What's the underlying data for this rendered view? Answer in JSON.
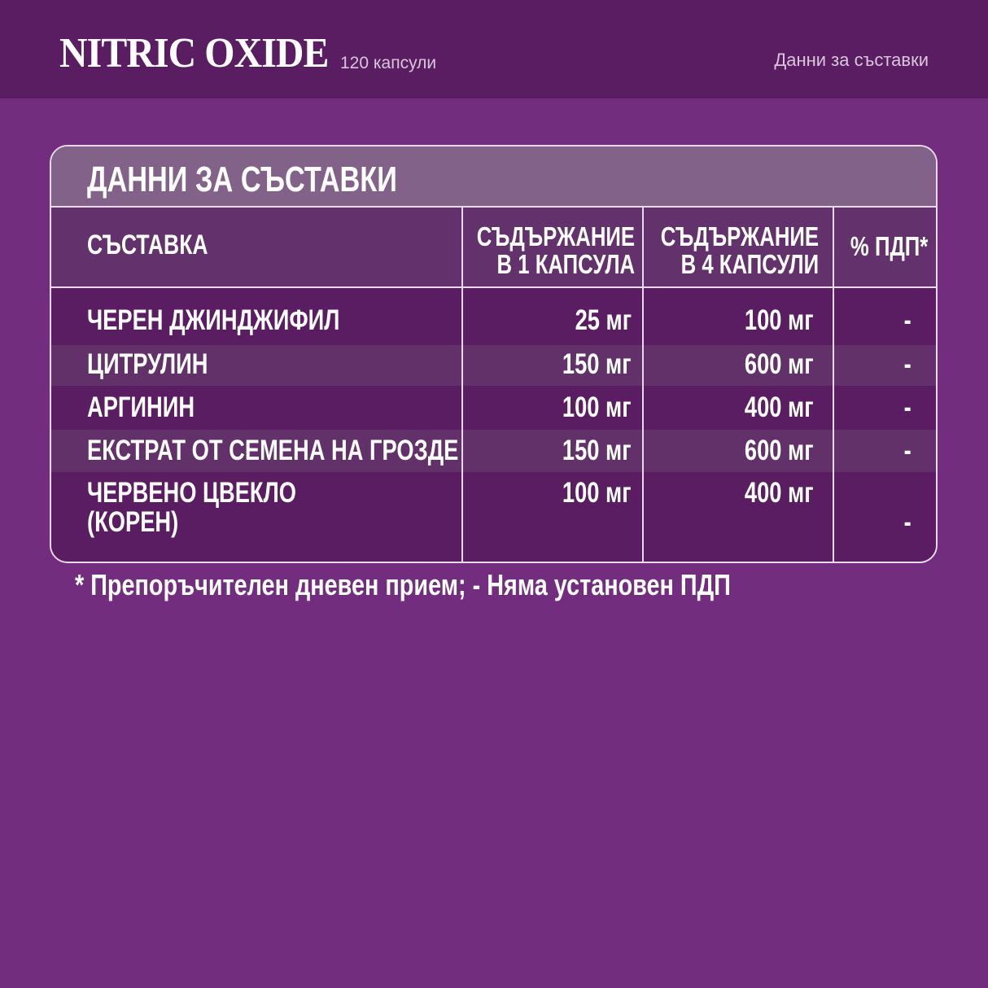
{
  "header": {
    "brand": "NITRIC OXIDE",
    "count": "120 капсули",
    "link": "Данни за съставки"
  },
  "table": {
    "title": "ДАННИ ЗА СЪСТАВКИ",
    "columns": [
      {
        "l1": "СЪСТАВКА"
      },
      {
        "l1": "СЪДЪРЖАНИЕ",
        "l2": "В 1 КАПСУЛА"
      },
      {
        "l1": "СЪДЪРЖАНИЕ",
        "l2": "В 4 КАПСУЛИ"
      },
      {
        "l1": "% ПДП*"
      }
    ],
    "rows": [
      {
        "name": "ЧЕРЕН ДЖИНДЖИФИЛ",
        "c1": "25 мг",
        "c4": "100 мг",
        "pdp": "-"
      },
      {
        "name": "ЦИТРУЛИН",
        "c1": "150 мг",
        "c4": "600 мг",
        "pdp": "-"
      },
      {
        "name": "АРГИНИН",
        "c1": "100 мг",
        "c4": "400 мг",
        "pdp": "-"
      },
      {
        "name": "ЕКСТРАТ ОТ СЕМЕНА НА ГРОЗДЕ",
        "c1": "150 мг",
        "c4": "600 мг",
        "pdp": "-"
      },
      {
        "name": "ЧЕРВЕНО ЦВЕКЛО",
        "name2": "(КОРЕН)",
        "c1": "100 мг",
        "c4": "400 мг",
        "pdp": "-"
      }
    ]
  },
  "footnote": "* Препоръчителен дневен прием; - Няма установен ПДП",
  "colors": {
    "page": "#722d7e",
    "topbar": "#5a1d61",
    "title_row": "#83628a",
    "header_row": "#63316c",
    "row_dark": "#5a1d61",
    "row_light": "#633169"
  }
}
